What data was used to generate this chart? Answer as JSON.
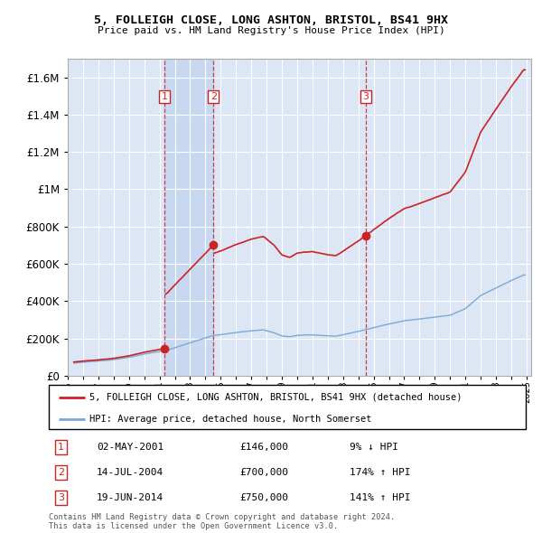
{
  "title1": "5, FOLLEIGH CLOSE, LONG ASHTON, BRISTOL, BS41 9HX",
  "title2": "Price paid vs. HM Land Registry's House Price Index (HPI)",
  "yticks": [
    0,
    200000,
    400000,
    600000,
    800000,
    1000000,
    1200000,
    1400000,
    1600000
  ],
  "ytick_labels": [
    "£0",
    "£200K",
    "£400K",
    "£600K",
    "£800K",
    "£1M",
    "£1.2M",
    "£1.4M",
    "£1.6M"
  ],
  "plot_bg_color": "#dce6f5",
  "grid_color": "#ffffff",
  "sale_label_color": "#cc0000",
  "hpi_line_color": "#7aaad4",
  "property_line_color": "#cc2222",
  "legend_property": "5, FOLLEIGH CLOSE, LONG ASHTON, BRISTOL, BS41 9HX (detached house)",
  "legend_hpi": "HPI: Average price, detached house, North Somerset",
  "table_entries": [
    {
      "num": "1",
      "date": "02-MAY-2001",
      "price": "£146,000",
      "change": "9% ↓ HPI"
    },
    {
      "num": "2",
      "date": "14-JUL-2004",
      "price": "£700,000",
      "change": "174% ↑ HPI"
    },
    {
      "num": "3",
      "date": "19-JUN-2014",
      "price": "£750,000",
      "change": "141% ↑ HPI"
    }
  ],
  "footer": "Contains HM Land Registry data © Crown copyright and database right 2024.\nThis data is licensed under the Open Government Licence v3.0.",
  "ylim": [
    0,
    1700000
  ],
  "xlim_start": 1995.3,
  "xlim_end": 2025.3
}
